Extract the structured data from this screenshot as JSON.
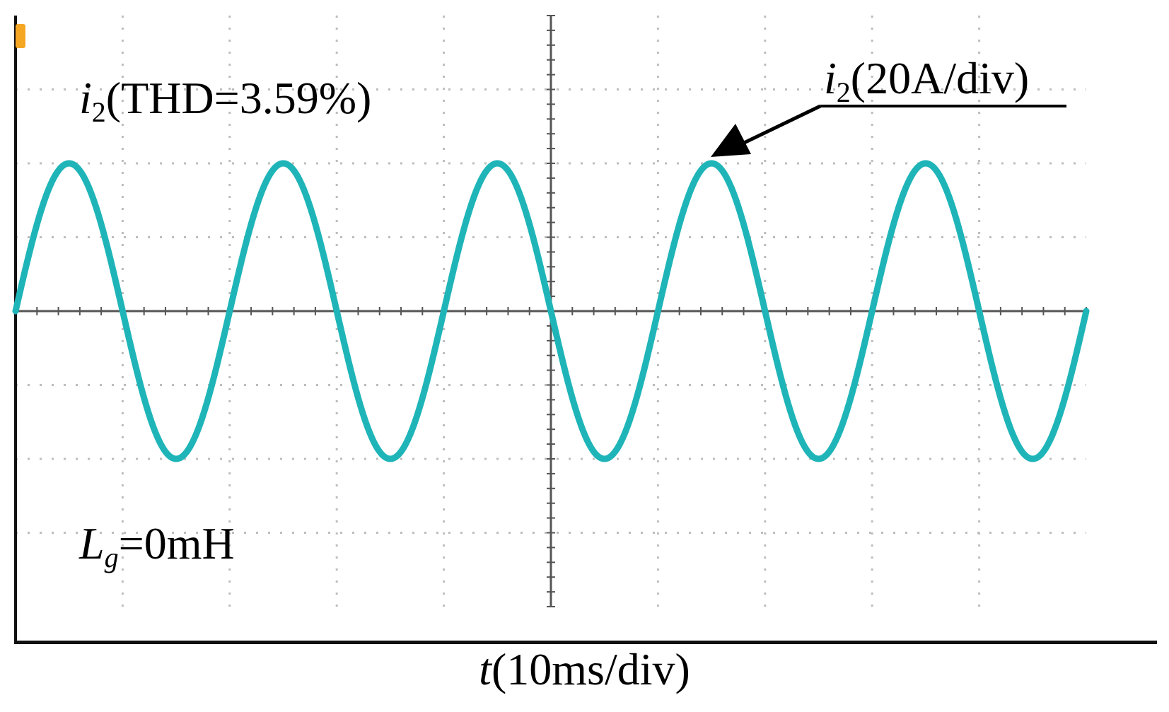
{
  "chart_data": {
    "type": "line",
    "title": "",
    "xlabel": {
      "var": "t",
      "unit": "(10ms/div)"
    },
    "ylabel": "",
    "grid": true,
    "grid_divisions": {
      "x": 10,
      "y": 8
    },
    "xlim_div": [
      0,
      10
    ],
    "ylim_div": [
      -4,
      4
    ],
    "series": [
      {
        "name": "i2",
        "color": "#1fb5b8",
        "waveform": "sine",
        "cycles_on_screen": 5,
        "amplitude_div": 2,
        "phase_at_left_edge_deg": 0
      }
    ],
    "annotations": {
      "thd": {
        "var": "i",
        "sub": "2",
        "text": "(THD=3.59%)"
      },
      "scale": {
        "var": "i",
        "sub": "2",
        "text": "(20A/div)"
      },
      "inductance": {
        "var": "L",
        "sub": "g",
        "text": "=0mH"
      }
    }
  },
  "colors": {
    "trace": "#1fb5b8",
    "grid": "#bdbdbd",
    "axis": "#555555",
    "frame": "#111111",
    "marker": "#f5a623"
  },
  "icons": {
    "trigger_marker": "trigger-level-marker"
  }
}
